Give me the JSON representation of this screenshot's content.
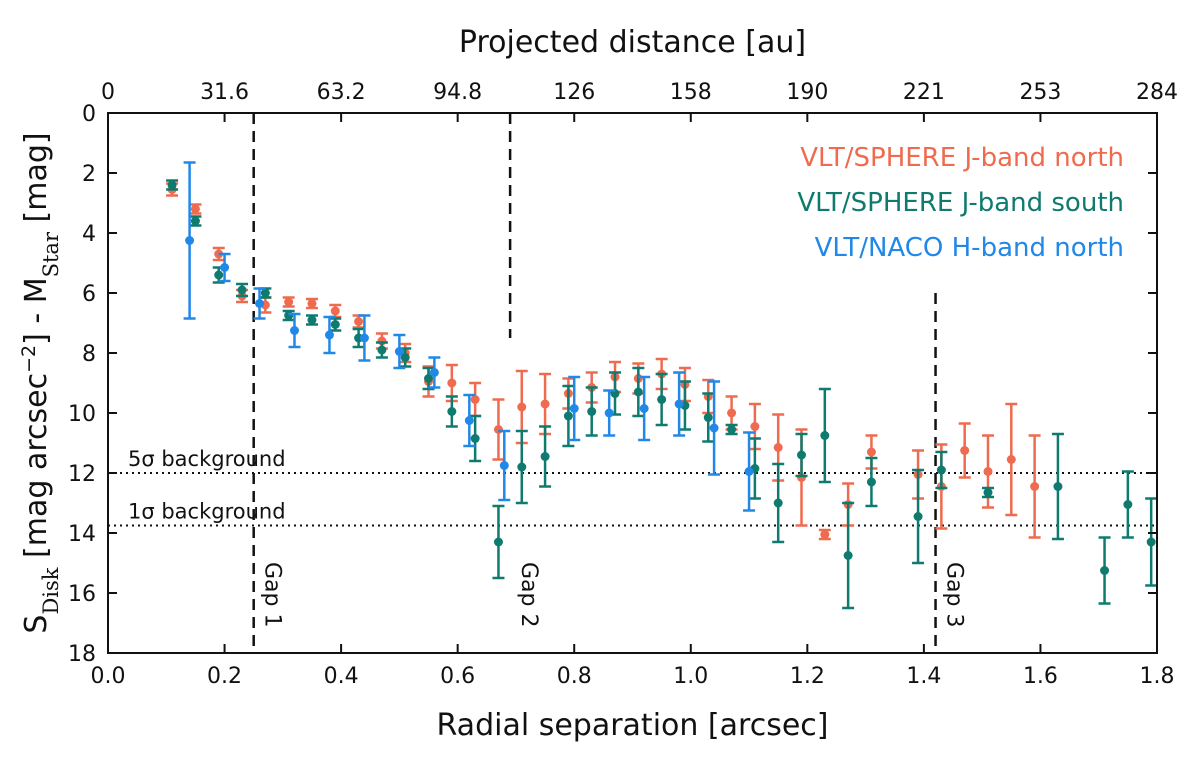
{
  "chart_data": {
    "type": "scatter",
    "xlabel": "Radial separation [arcsec]",
    "ylabel": {
      "prefix": "S",
      "sub1": "Disk",
      "mid": " [mag arcsec",
      "sup": "−2",
      "mid2": "] - M",
      "sub2": "Star",
      "suffix": " [mag]"
    },
    "top_xlabel": "Projected distance [au]",
    "xlim": [
      0.0,
      1.8
    ],
    "ylim": [
      18,
      0
    ],
    "x_ticks": [
      "0.0",
      "0.2",
      "0.4",
      "0.6",
      "0.8",
      "1.0",
      "1.2",
      "1.4",
      "1.6",
      "1.8"
    ],
    "y_ticks": [
      "0",
      "2",
      "4",
      "6",
      "8",
      "10",
      "12",
      "14",
      "16",
      "18"
    ],
    "top_ticks": [
      "0",
      "31.6",
      "63.2",
      "94.8",
      "126",
      "158",
      "190",
      "221",
      "253",
      "284"
    ],
    "hlines": [
      {
        "y": 12.0,
        "label": "5σ background"
      },
      {
        "y": 13.75,
        "label": "1σ background"
      }
    ],
    "vlines": [
      {
        "x": 0.25,
        "label": "Gap 1",
        "ymin": 0,
        "ymax": 18
      },
      {
        "x": 0.69,
        "label": "Gap 2",
        "ymin": 0,
        "ymax": 7.5
      },
      {
        "x": 1.42,
        "label": "Gap 3",
        "ymin": 6.0,
        "ymax": 18
      }
    ],
    "series": [
      {
        "name": "VLT/SPHERE J-band north",
        "color": "#ef6b4f",
        "points": [
          [
            0.11,
            2.55,
            0.2
          ],
          [
            0.15,
            3.2,
            0.15
          ],
          [
            0.19,
            4.7,
            0.2
          ],
          [
            0.23,
            6.1,
            0.2
          ],
          [
            0.27,
            6.4,
            0.25
          ],
          [
            0.31,
            6.3,
            0.15
          ],
          [
            0.35,
            6.35,
            0.15
          ],
          [
            0.39,
            6.6,
            0.2
          ],
          [
            0.43,
            6.95,
            0.2
          ],
          [
            0.47,
            7.6,
            0.25
          ],
          [
            0.51,
            8.0,
            0.3
          ],
          [
            0.55,
            8.95,
            0.5
          ],
          [
            0.59,
            9.0,
            0.6
          ],
          [
            0.63,
            9.55,
            0.55
          ],
          [
            0.67,
            10.55,
            1.0
          ],
          [
            0.71,
            9.8,
            1.2
          ],
          [
            0.75,
            9.7,
            1.0
          ],
          [
            0.79,
            9.35,
            0.5
          ],
          [
            0.83,
            9.15,
            0.5
          ],
          [
            0.87,
            8.8,
            0.5
          ],
          [
            0.91,
            8.85,
            0.5
          ],
          [
            0.95,
            8.7,
            0.5
          ],
          [
            0.99,
            9.05,
            0.55
          ],
          [
            1.03,
            9.45,
            0.55
          ],
          [
            1.07,
            10.0,
            0.55
          ],
          [
            1.11,
            10.45,
            0.75
          ],
          [
            1.15,
            11.15,
            1.1
          ],
          [
            1.19,
            12.15,
            1.6
          ],
          [
            1.23,
            14.05,
            0.15
          ],
          [
            1.27,
            13.05,
            0.7
          ],
          [
            1.31,
            11.3,
            0.55
          ],
          [
            1.39,
            12.05,
            0.8
          ],
          [
            1.43,
            12.45,
            1.4
          ],
          [
            1.47,
            11.25,
            0.9
          ],
          [
            1.51,
            11.95,
            1.2
          ],
          [
            1.55,
            11.55,
            1.85
          ],
          [
            1.59,
            12.45,
            1.7
          ]
        ]
      },
      {
        "name": "VLT/SPHERE J-band south",
        "color": "#0f7a6e",
        "points": [
          [
            0.11,
            2.4,
            0.15
          ],
          [
            0.15,
            3.6,
            0.15
          ],
          [
            0.19,
            5.4,
            0.25
          ],
          [
            0.23,
            5.9,
            0.2
          ],
          [
            0.27,
            6.0,
            0.15
          ],
          [
            0.31,
            6.75,
            0.15
          ],
          [
            0.35,
            6.9,
            0.15
          ],
          [
            0.39,
            7.05,
            0.2
          ],
          [
            0.43,
            7.5,
            0.3
          ],
          [
            0.47,
            7.9,
            0.25
          ],
          [
            0.51,
            8.15,
            0.3
          ],
          [
            0.55,
            8.85,
            0.35
          ],
          [
            0.59,
            9.95,
            0.5
          ],
          [
            0.63,
            10.85,
            0.75
          ],
          [
            0.67,
            14.3,
            1.2
          ],
          [
            0.71,
            11.8,
            1.2
          ],
          [
            0.75,
            11.45,
            1.0
          ],
          [
            0.79,
            10.1,
            1.0
          ],
          [
            0.83,
            9.95,
            0.8
          ],
          [
            0.87,
            9.35,
            0.7
          ],
          [
            0.91,
            9.3,
            0.8
          ],
          [
            0.95,
            9.55,
            0.85
          ],
          [
            0.99,
            9.75,
            0.8
          ],
          [
            1.03,
            10.15,
            0.8
          ],
          [
            1.07,
            10.55,
            0.15
          ],
          [
            1.11,
            11.85,
            1.0
          ],
          [
            1.15,
            13.0,
            1.3
          ],
          [
            1.19,
            11.4,
            0.7
          ],
          [
            1.23,
            10.75,
            1.55
          ],
          [
            1.27,
            14.75,
            1.75
          ],
          [
            1.31,
            12.3,
            0.8
          ],
          [
            1.39,
            13.45,
            1.55
          ],
          [
            1.43,
            11.9,
            0.6
          ],
          [
            1.51,
            12.65,
            0.15
          ],
          [
            1.63,
            12.45,
            1.75
          ],
          [
            1.71,
            15.25,
            1.1
          ],
          [
            1.75,
            13.05,
            1.1
          ],
          [
            1.79,
            14.3,
            1.45
          ]
        ]
      },
      {
        "name": "VLT/NACO H-band north",
        "color": "#2188e8",
        "points": [
          [
            0.14,
            4.25,
            2.6
          ],
          [
            0.2,
            5.15,
            0.45
          ],
          [
            0.26,
            6.35,
            0.5
          ],
          [
            0.32,
            7.25,
            0.55
          ],
          [
            0.38,
            7.4,
            0.6
          ],
          [
            0.44,
            7.5,
            0.75
          ],
          [
            0.5,
            7.95,
            0.55
          ],
          [
            0.56,
            8.65,
            0.5
          ],
          [
            0.62,
            10.25,
            0.85
          ],
          [
            0.68,
            11.75,
            1.15
          ],
          [
            0.8,
            9.85,
            1.05
          ],
          [
            0.86,
            10.0,
            0.75
          ],
          [
            0.92,
            9.85,
            1.05
          ],
          [
            0.98,
            9.7,
            1.05
          ],
          [
            1.04,
            10.5,
            1.55
          ],
          [
            1.1,
            11.95,
            1.3
          ]
        ]
      }
    ]
  }
}
